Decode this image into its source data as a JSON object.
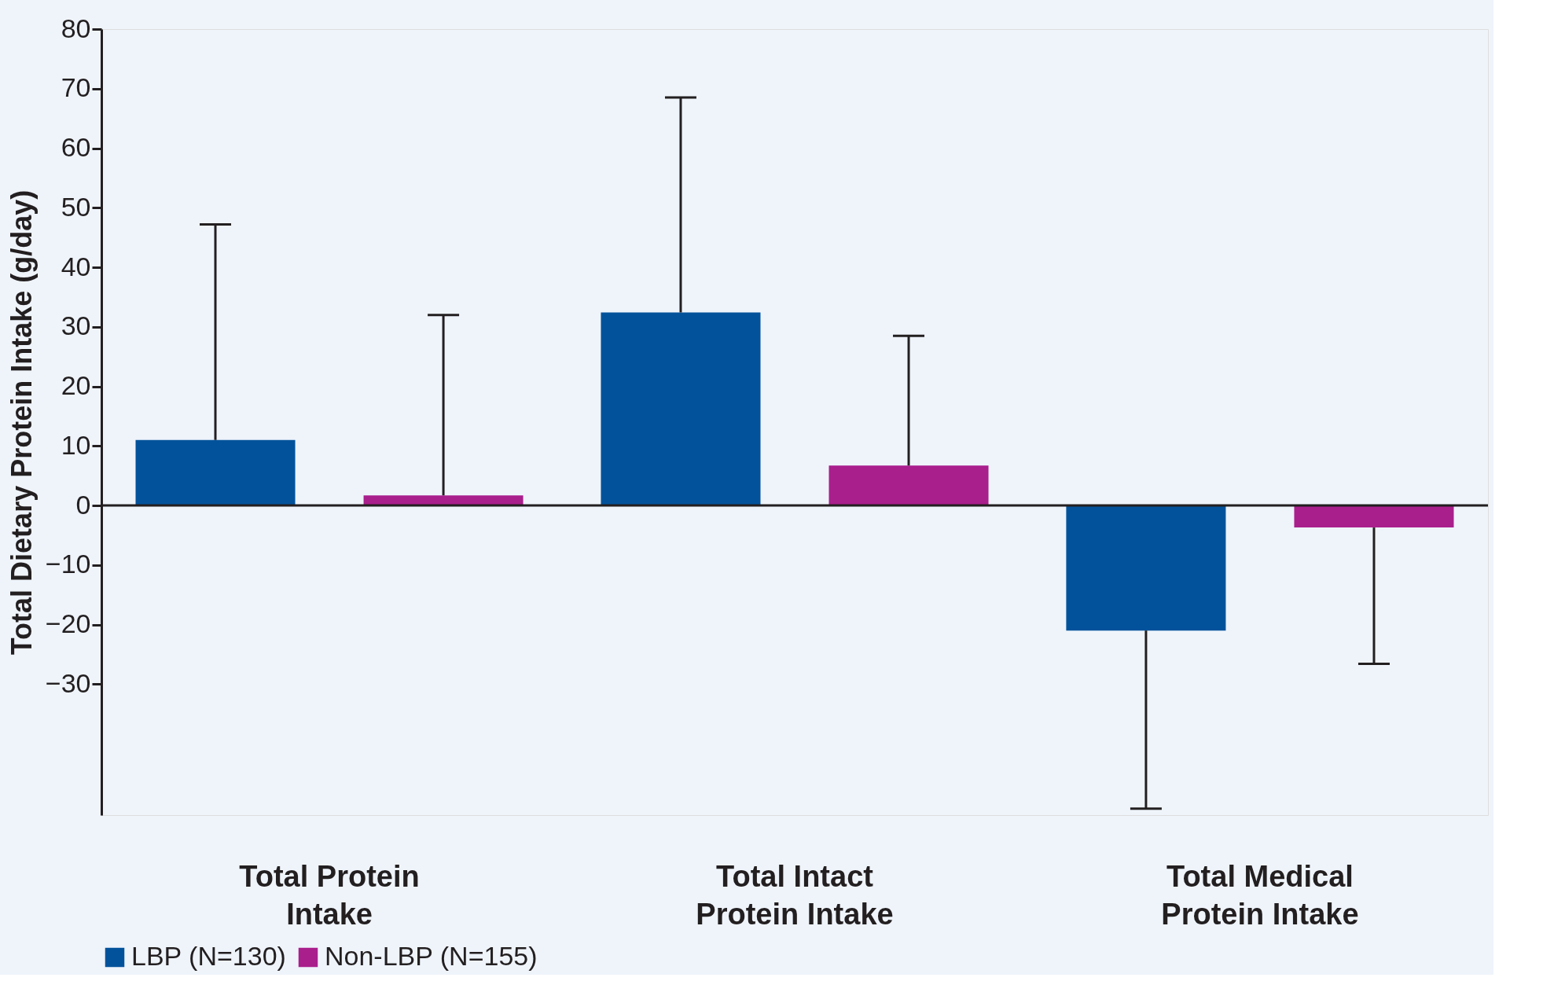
{
  "chart_data": {
    "type": "bar",
    "ylabel": "Total Dietary Protein Intake (g/day)",
    "categories": [
      "Total Protein\nIntake",
      "Total Intact\nProtein Intake",
      "Total Medical\nProtein Intake"
    ],
    "series": [
      {
        "name": "LBP (N=130)",
        "color": "#02529b",
        "values": [
          11,
          32.4,
          -21
        ],
        "errors": [
          [
            11,
            47.2
          ],
          [
            32.4,
            68.5
          ],
          [
            -50.9,
            -21
          ]
        ]
      },
      {
        "name": "Non-LBP (N=155)",
        "color": "#a91f8c",
        "values": [
          1.7,
          6.7,
          -3.7
        ],
        "errors": [
          [
            1.7,
            32
          ],
          [
            6.7,
            28.5
          ],
          [
            -26.6,
            -3.7
          ]
        ]
      }
    ],
    "ylim": [
      -52,
      80
    ],
    "yticks": [
      -30,
      -20,
      -10,
      0,
      10,
      20,
      30,
      40,
      50,
      60,
      70,
      80
    ],
    "ref_lines": [
      {
        "axis": "y",
        "value": 0
      }
    ],
    "legend": "bottom",
    "grid": false
  }
}
